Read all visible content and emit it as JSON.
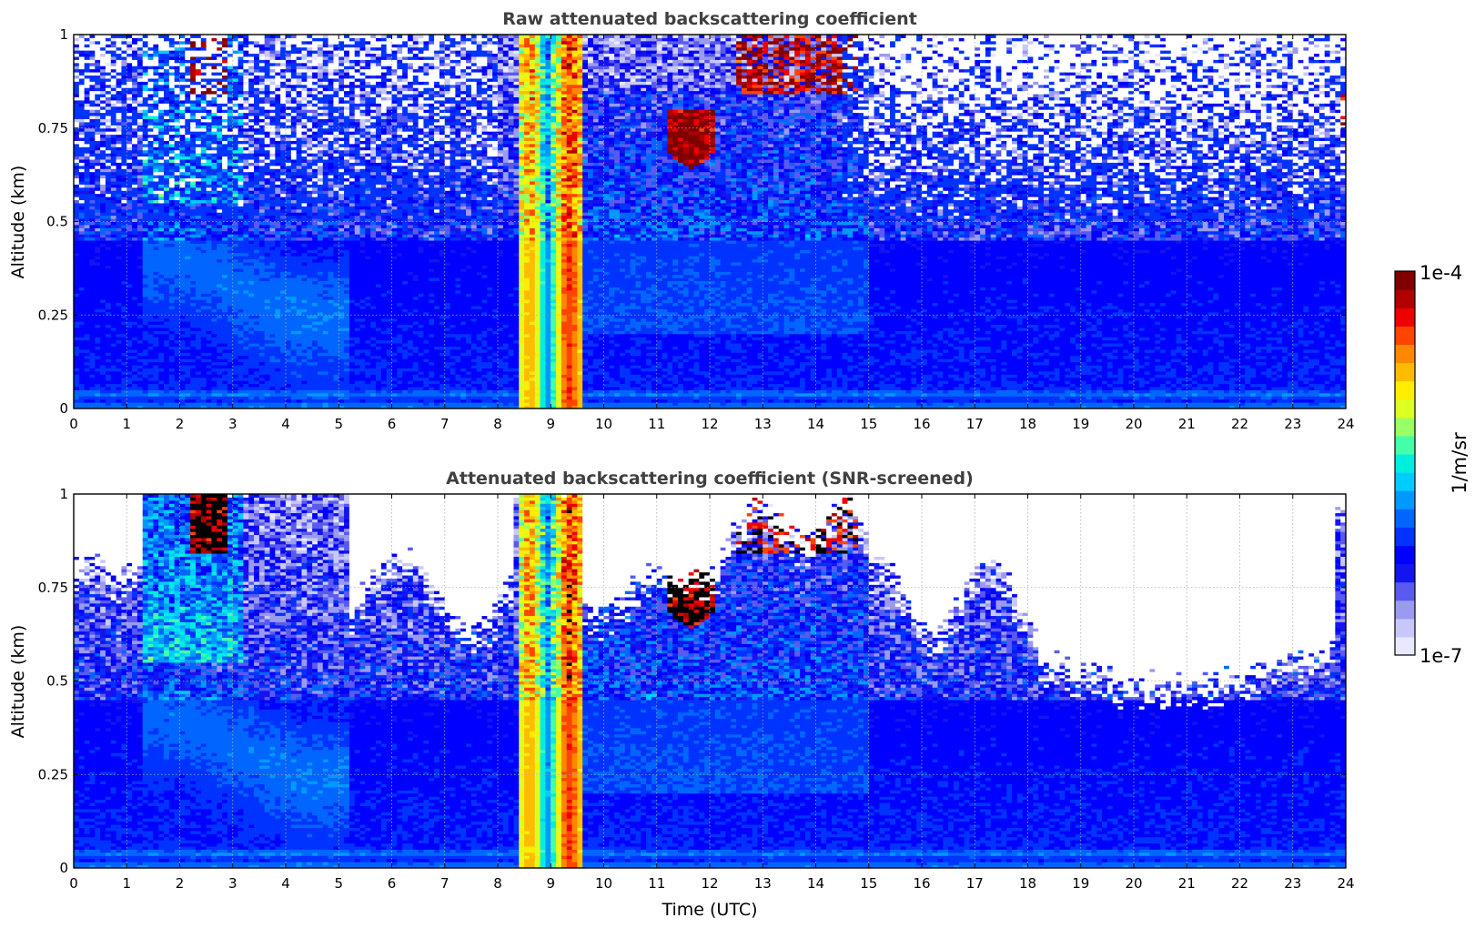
{
  "figure": {
    "colorbar": {
      "max_label": "1e-4",
      "min_label": "1e-7",
      "unit_label": "1/m/sr",
      "scale": "log",
      "colormap": "jet",
      "min_color": "#eeeeff",
      "colors": [
        "#e8e8ff",
        "#c8c8f8",
        "#9a9af0",
        "#5a5af0",
        "#1414f0",
        "#0000ff",
        "#0033ff",
        "#0066ff",
        "#0099ff",
        "#00ccff",
        "#00eedd",
        "#44ffaa",
        "#99ff66",
        "#ddff22",
        "#ffee00",
        "#ffbb00",
        "#ff8800",
        "#ff4400",
        "#ee0000",
        "#b00000",
        "#800000"
      ]
    },
    "xlabel": "Time (UTC)"
  },
  "chart_data": [
    {
      "type": "heatmap",
      "title": "Raw attenuated backscattering coefficient",
      "xlabel": "",
      "ylabel": "Altitude (km)",
      "xlim": [
        0,
        24
      ],
      "ylim": [
        0,
        1
      ],
      "x_ticks": [
        "0",
        "1",
        "2",
        "3",
        "4",
        "5",
        "6",
        "7",
        "8",
        "9",
        "10",
        "11",
        "12",
        "13",
        "14",
        "15",
        "16",
        "17",
        "18",
        "19",
        "20",
        "21",
        "22",
        "23",
        "24"
      ],
      "y_ticks": [
        "0",
        "0.25",
        "0.5",
        "0.75",
        "1"
      ],
      "y_tick_values": [
        0,
        0.25,
        0.5,
        0.75,
        1
      ],
      "grid": true,
      "screened": false,
      "features": [
        {
          "time": [
            8.35,
            9.55
          ],
          "alt": [
            0,
            1
          ],
          "level": "high",
          "desc": "precipitation/fog column"
        },
        {
          "time": [
            2.15,
            2.85
          ],
          "alt": [
            0.84,
            1.0
          ],
          "level": "max"
        },
        {
          "time": [
            11.2,
            12.1
          ],
          "alt": [
            0.65,
            0.8
          ],
          "level": "max"
        },
        {
          "time": [
            12.5,
            14.8
          ],
          "alt": [
            0.84,
            1.0
          ],
          "level": "max"
        },
        {
          "time": [
            23.9,
            24
          ],
          "alt": [
            0.75,
            0.85
          ],
          "level": "max"
        }
      ]
    },
    {
      "type": "heatmap",
      "title": "Attenuated backscattering coefficient (SNR-screened)",
      "xlabel": "Time (UTC)",
      "ylabel": "Altitude (km)",
      "xlim": [
        0,
        24
      ],
      "ylim": [
        0,
        1
      ],
      "x_ticks": [
        "0",
        "1",
        "2",
        "3",
        "4",
        "5",
        "6",
        "7",
        "8",
        "9",
        "10",
        "11",
        "12",
        "13",
        "14",
        "15",
        "16",
        "17",
        "18",
        "19",
        "20",
        "21",
        "22",
        "23",
        "24"
      ],
      "y_ticks": [
        "0",
        "0.25",
        "0.5",
        "0.75",
        "1"
      ],
      "y_tick_values": [
        0,
        0.25,
        0.5,
        0.75,
        1
      ],
      "grid": true,
      "screened": true,
      "features": [
        {
          "time": [
            8.35,
            9.55
          ],
          "alt": [
            0,
            1
          ],
          "level": "high",
          "desc": "precipitation/fog column"
        },
        {
          "time": [
            2.15,
            2.85
          ],
          "alt": [
            0.84,
            1.0
          ],
          "level": "saturated"
        },
        {
          "time": [
            11.2,
            12.1
          ],
          "alt": [
            0.65,
            0.8
          ],
          "level": "saturated"
        },
        {
          "time": [
            12.5,
            14.8
          ],
          "alt": [
            0.84,
            1.0
          ],
          "level": "saturated"
        }
      ]
    }
  ]
}
